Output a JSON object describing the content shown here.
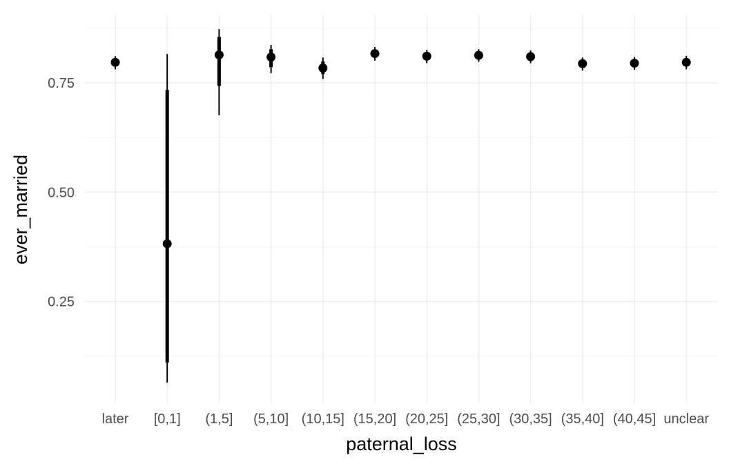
{
  "chart_data": {
    "type": "scatter",
    "subtype": "pointrange",
    "xlabel": "paternal_loss",
    "ylabel": "ever_married",
    "categories": [
      "later",
      "[0,1]",
      "(1,5]",
      "(5,10]",
      "(10,15]",
      "(15,20]",
      "(20,25]",
      "(25,30]",
      "(30,35]",
      "(35,40]",
      "(40,45]",
      "unclear"
    ],
    "ylim": [
      0.05,
      0.885
    ],
    "yticks": [
      0.25,
      0.5,
      0.75
    ],
    "ytick_labels": [
      "0.25",
      "0.50",
      "0.75"
    ],
    "grid": true,
    "legend": "none",
    "point_color": "#000000",
    "points": [
      {
        "x": "later",
        "y": 0.797,
        "inner": [
          0.789,
          0.804
        ],
        "outer": [
          0.781,
          0.811
        ]
      },
      {
        "x": "[0,1]",
        "y": 0.382,
        "inner": [
          0.11,
          0.734
        ],
        "outer": [
          0.064,
          0.816
        ]
      },
      {
        "x": "(1,5]",
        "y": 0.814,
        "inner": [
          0.743,
          0.855
        ],
        "outer": [
          0.676,
          0.873
        ]
      },
      {
        "x": "(5,10]",
        "y": 0.809,
        "inner": [
          0.786,
          0.827
        ],
        "outer": [
          0.772,
          0.837
        ]
      },
      {
        "x": "(10,15]",
        "y": 0.784,
        "inner": [
          0.77,
          0.799
        ],
        "outer": [
          0.759,
          0.808
        ]
      },
      {
        "x": "(15,20]",
        "y": 0.817,
        "inner": [
          0.808,
          0.826
        ],
        "outer": [
          0.801,
          0.832
        ]
      },
      {
        "x": "(20,25]",
        "y": 0.811,
        "inner": [
          0.802,
          0.819
        ],
        "outer": [
          0.795,
          0.825
        ]
      },
      {
        "x": "(25,30]",
        "y": 0.813,
        "inner": [
          0.804,
          0.821
        ],
        "outer": [
          0.798,
          0.827
        ]
      },
      {
        "x": "(30,35]",
        "y": 0.81,
        "inner": [
          0.801,
          0.818
        ],
        "outer": [
          0.795,
          0.824
        ]
      },
      {
        "x": "(35,40]",
        "y": 0.794,
        "inner": [
          0.785,
          0.802
        ],
        "outer": [
          0.778,
          0.808
        ]
      },
      {
        "x": "(40,45]",
        "y": 0.795,
        "inner": [
          0.786,
          0.803
        ],
        "outer": [
          0.78,
          0.809
        ]
      },
      {
        "x": "unclear",
        "y": 0.797,
        "inner": [
          0.788,
          0.806
        ],
        "outer": [
          0.781,
          0.812
        ]
      }
    ]
  }
}
